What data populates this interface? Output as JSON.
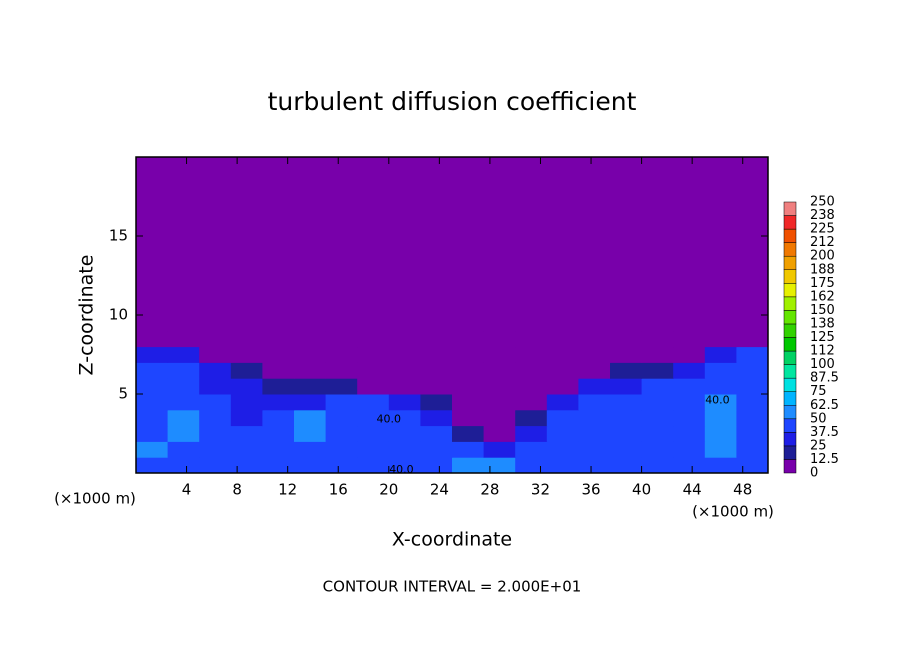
{
  "chart_data": {
    "type": "contour",
    "title": "turbulent diffusion coefficient",
    "x_label": "X-coordinate",
    "y_label": "Z-coordinate",
    "x_unit_left": "(×1000 m)",
    "x_unit_right": "(×1000 m)",
    "footer": "CONTOUR INTERVAL = 2.000E+01",
    "xlim": [
      0,
      50
    ],
    "ylim": [
      0,
      20
    ],
    "xticks": [
      4,
      8,
      12,
      16,
      20,
      24,
      28,
      32,
      36,
      40,
      44,
      48
    ],
    "yticks": [
      5,
      10,
      15
    ],
    "x_edges": [
      0,
      2.5,
      5,
      7.5,
      10,
      12.5,
      15,
      17.5,
      20,
      22.5,
      25,
      27.5,
      30,
      32.5,
      35,
      37.5,
      40,
      42.5,
      45,
      47.5,
      50
    ],
    "z_edges": [
      0,
      1,
      2,
      3,
      4,
      5,
      6,
      7,
      8,
      9,
      20
    ],
    "values": [
      [
        45,
        40,
        42,
        38,
        40,
        45,
        42,
        48,
        40,
        45,
        55,
        50,
        45,
        40,
        42,
        45,
        40,
        42,
        48,
        45
      ],
      [
        50,
        42,
        38,
        40,
        38,
        45,
        48,
        42,
        40,
        45,
        40,
        35,
        42,
        40,
        45,
        40,
        38,
        45,
        50,
        48
      ],
      [
        45,
        55,
        40,
        38,
        40,
        55,
        45,
        40,
        42,
        40,
        20,
        10,
        30,
        40,
        42,
        40,
        45,
        42,
        55,
        45
      ],
      [
        42,
        55,
        40,
        35,
        38,
        50,
        42,
        45,
        40,
        35,
        8,
        5,
        15,
        38,
        40,
        40,
        42,
        45,
        58,
        42
      ],
      [
        40,
        45,
        38,
        35,
        35,
        30,
        38,
        40,
        25,
        15,
        5,
        5,
        5,
        30,
        40,
        42,
        40,
        48,
        55,
        40
      ],
      [
        42,
        40,
        35,
        30,
        20,
        15,
        15,
        10,
        8,
        5,
        5,
        5,
        5,
        8,
        25,
        35,
        38,
        40,
        45,
        42
      ],
      [
        40,
        42,
        25,
        15,
        5,
        5,
        5,
        5,
        5,
        5,
        5,
        5,
        5,
        5,
        5,
        15,
        20,
        30,
        40,
        40
      ],
      [
        35,
        30,
        10,
        5,
        5,
        5,
        5,
        5,
        5,
        5,
        5,
        5,
        5,
        5,
        5,
        5,
        5,
        10,
        35,
        38
      ],
      [
        5,
        5,
        5,
        5,
        5,
        5,
        5,
        5,
        5,
        5,
        5,
        5,
        5,
        5,
        5,
        5,
        5,
        5,
        10,
        10
      ],
      [
        5,
        5,
        5,
        5,
        5,
        5,
        5,
        5,
        5,
        5,
        5,
        5,
        5,
        5,
        5,
        5,
        5,
        5,
        5,
        5
      ]
    ],
    "levels": [
      0,
      12.5,
      25,
      37.5,
      50,
      62.5,
      75,
      87.5,
      100,
      112,
      125,
      138,
      150,
      162,
      175,
      188,
      200,
      212,
      225,
      238,
      250
    ],
    "colors": [
      "#7800aa",
      "#1e1e96",
      "#1e1ee6",
      "#1e46ff",
      "#1e8cff",
      "#00b4ff",
      "#00e1e1",
      "#00e6a0",
      "#00d264",
      "#00c800",
      "#32d200",
      "#64e600",
      "#a0f000",
      "#e6f000",
      "#f0c800",
      "#f0a000",
      "#f07800",
      "#f05000",
      "#f02828",
      "#f08080"
    ],
    "annotations": [
      {
        "text": "40.0",
        "x": 20,
        "y": 3.4
      },
      {
        "text": "40.0",
        "x": 21,
        "y": 0.2
      },
      {
        "text": "40.0",
        "x": 46,
        "y": 4.6
      }
    ]
  }
}
